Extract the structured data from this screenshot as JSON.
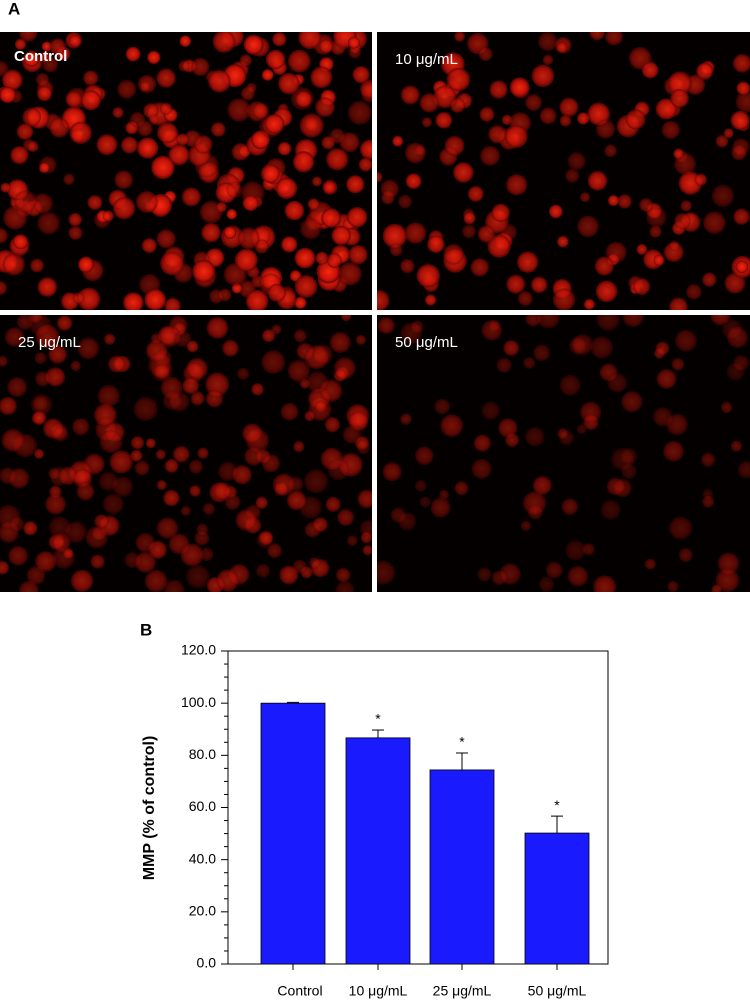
{
  "panel_a": {
    "label": "A",
    "images": [
      {
        "label": "Control"
      },
      {
        "label": "10 μg/mL"
      },
      {
        "label": "25 μg/mL"
      },
      {
        "label": "50 μg/mL"
      }
    ]
  },
  "chart_data": {
    "type": "bar",
    "panel_label": "B",
    "ylabel": "MMP (% of control)",
    "categories": [
      "Control",
      "10 μg/mL",
      "25 μg/mL",
      "50 μg/mL"
    ],
    "values": [
      100,
      86.7,
      74.4,
      50.2
    ],
    "errors": [
      0.3,
      3,
      6.5,
      6.5
    ],
    "annotations": [
      null,
      "*",
      "*",
      "*"
    ],
    "color": "#1a1aff",
    "ylim": [
      0,
      120
    ],
    "yticks": [
      {
        "value": 0,
        "label": "0.0"
      },
      {
        "value": 20,
        "label": "20.0"
      },
      {
        "value": 40,
        "label": "40.0"
      },
      {
        "value": 60,
        "label": "60.0"
      },
      {
        "value": 80,
        "label": "80.0"
      },
      {
        "value": 100,
        "label": "100.0"
      },
      {
        "value": 120,
        "label": "120.0"
      }
    ]
  }
}
